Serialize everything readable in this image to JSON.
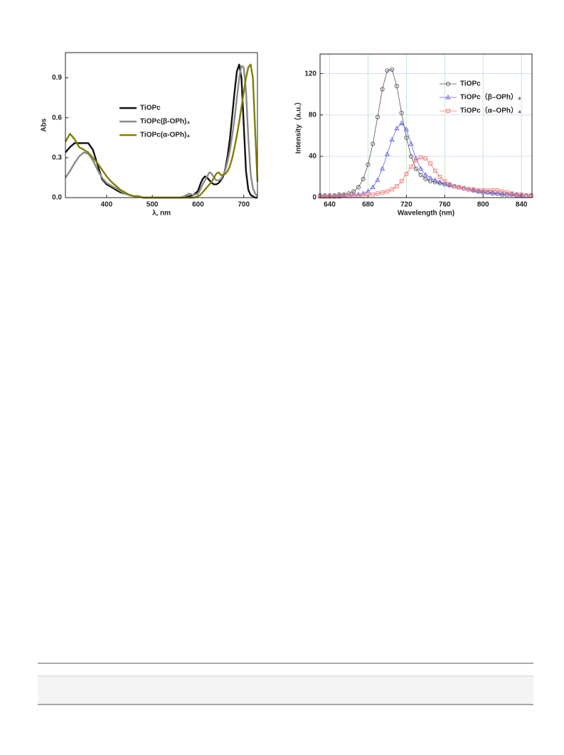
{
  "chart_data": [
    {
      "type": "line",
      "x_label": "λ, nm",
      "y_label": "Abs",
      "legend": "center",
      "xlim": [
        310,
        730
      ],
      "ylim": [
        0,
        1.09
      ],
      "xticks": [
        400,
        500,
        600,
        700
      ],
      "yticks": [
        {
          "value": 0,
          "label": "0.0"
        },
        0.3,
        0.6,
        0.9
      ],
      "x": [
        310,
        320,
        330,
        340,
        350,
        360,
        370,
        380,
        390,
        400,
        410,
        420,
        430,
        440,
        450,
        460,
        470,
        480,
        490,
        500,
        510,
        520,
        530,
        540,
        550,
        560,
        570,
        580,
        590,
        600,
        605,
        610,
        615,
        620,
        625,
        630,
        635,
        640,
        645,
        650,
        655,
        660,
        665,
        670,
        675,
        680,
        685,
        690,
        695,
        700,
        705,
        710,
        715,
        720,
        725,
        730
      ],
      "series": [
        {
          "name": "TiOPc",
          "color": "#111111",
          "values": [
            0.34,
            0.38,
            0.41,
            0.41,
            0.41,
            0.41,
            0.36,
            0.25,
            0.14,
            0.1,
            0.08,
            0.06,
            0.04,
            0.03,
            0.02,
            0.01,
            0.01,
            0,
            0,
            0,
            0,
            0,
            0,
            0,
            0,
            0,
            0,
            0.01,
            0.02,
            0.05,
            0.1,
            0.14,
            0.16,
            0.15,
            0.13,
            0.11,
            0.1,
            0.1,
            0.11,
            0.13,
            0.16,
            0.22,
            0.32,
            0.45,
            0.62,
            0.8,
            0.95,
            1.0,
            0.9,
            0.55,
            0.2,
            0.06,
            0.02,
            0.01,
            0,
            0
          ]
        },
        {
          "name": "TiOPc(β-OPh)₄",
          "color": "#8a8a8a",
          "values": [
            0.15,
            0.2,
            0.26,
            0.31,
            0.34,
            0.33,
            0.28,
            0.21,
            0.15,
            0.11,
            0.09,
            0.07,
            0.05,
            0.03,
            0.02,
            0.01,
            0.01,
            0,
            0,
            0,
            0,
            0,
            0,
            0,
            0,
            0,
            0.01,
            0.03,
            0.02,
            0.03,
            0.06,
            0.1,
            0.13,
            0.16,
            0.19,
            0.18,
            0.15,
            0.13,
            0.13,
            0.14,
            0.17,
            0.21,
            0.28,
            0.36,
            0.47,
            0.6,
            0.75,
            0.9,
            0.99,
            0.98,
            0.8,
            0.45,
            0.18,
            0.07,
            0.03,
            0.01
          ]
        },
        {
          "name": "TiOPc(α-OPh)₄",
          "color": "#808000",
          "values": [
            0.42,
            0.48,
            0.44,
            0.38,
            0.36,
            0.34,
            0.3,
            0.26,
            0.21,
            0.16,
            0.12,
            0.09,
            0.06,
            0.04,
            0.02,
            0.01,
            0.01,
            0,
            0,
            0,
            0,
            0,
            0,
            0,
            0,
            0,
            0,
            0,
            0,
            0.01,
            0.02,
            0.04,
            0.06,
            0.08,
            0.1,
            0.12,
            0.15,
            0.18,
            0.19,
            0.17,
            0.17,
            0.18,
            0.2,
            0.24,
            0.3,
            0.38,
            0.47,
            0.57,
            0.68,
            0.79,
            0.9,
            0.98,
            1.0,
            0.9,
            0.5,
            0.12
          ]
        }
      ]
    },
    {
      "type": "line",
      "x_label": "Wavelength (nm)",
      "y_label": "Intensity（a.u.）",
      "legend": "upper right",
      "grid": true,
      "xlim": [
        630,
        851
      ],
      "ylim": [
        0,
        139
      ],
      "xticks": [
        640,
        680,
        720,
        760,
        800,
        840
      ],
      "yticks": [
        0,
        40,
        80,
        120
      ],
      "x": [
        630,
        635,
        640,
        645,
        650,
        655,
        660,
        665,
        670,
        675,
        680,
        685,
        690,
        695,
        700,
        705,
        710,
        715,
        720,
        725,
        730,
        735,
        740,
        745,
        750,
        755,
        760,
        765,
        770,
        775,
        780,
        785,
        790,
        795,
        800,
        805,
        810,
        815,
        820,
        825,
        830,
        835,
        840,
        845,
        850
      ],
      "series": [
        {
          "name": "TiOPc",
          "color": "#555555",
          "marker": "circle",
          "values": [
            2,
            2,
            2,
            2,
            3,
            3,
            4,
            6,
            10,
            18,
            32,
            52,
            78,
            105,
            123,
            124,
            108,
            82,
            58,
            40,
            28,
            22,
            18,
            16,
            15,
            14,
            13,
            12,
            11,
            10,
            9,
            8,
            7,
            6,
            5,
            5,
            4,
            4,
            3,
            3,
            3,
            2,
            2,
            2,
            2
          ]
        },
        {
          "name": "TiOPc（β–OPh）₄",
          "color": "#6464e6",
          "marker": "triangle",
          "values": [
            1,
            1,
            1,
            1,
            2,
            2,
            2,
            3,
            3,
            4,
            6,
            10,
            17,
            28,
            42,
            56,
            67,
            72,
            66,
            52,
            38,
            28,
            22,
            19,
            17,
            15,
            13,
            12,
            11,
            10,
            9,
            8,
            7,
            6,
            6,
            5,
            5,
            4,
            4,
            3,
            3,
            3,
            2,
            2,
            2
          ]
        },
        {
          "name": "TiOPc（α–OPh）₄",
          "color": "#f07878",
          "marker": "square",
          "values": [
            1,
            1,
            1,
            1,
            1,
            2,
            2,
            2,
            2,
            2,
            3,
            3,
            4,
            5,
            6,
            8,
            11,
            16,
            23,
            30,
            36,
            39,
            38,
            33,
            26,
            20,
            16,
            13,
            11,
            10,
            9,
            8,
            8,
            7,
            7,
            7,
            7,
            7,
            6,
            5,
            4,
            3,
            3,
            2,
            2
          ]
        }
      ]
    }
  ]
}
